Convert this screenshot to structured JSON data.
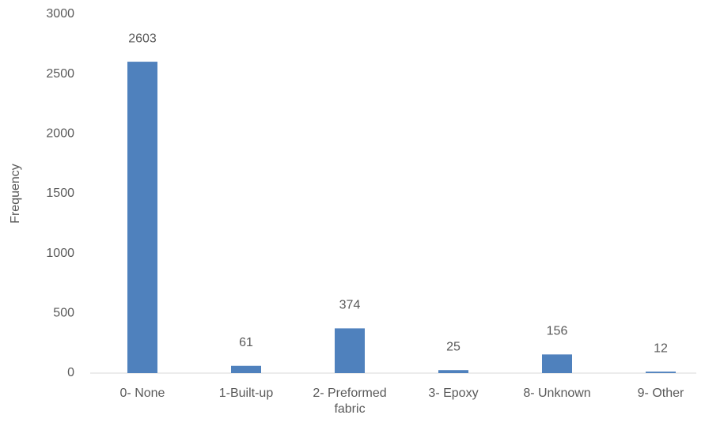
{
  "chart_data": {
    "type": "bar",
    "y_label": "Frequency",
    "categories": [
      "0- None",
      "1-Built-up",
      "2- Preformed fabric",
      "3- Epoxy",
      "8- Unknown",
      "9- Other"
    ],
    "values": [
      2603,
      61,
      374,
      25,
      156,
      12
    ],
    "color": "#4f81bd",
    "ylim": [
      0,
      3000
    ],
    "yticks": [
      0,
      500,
      1000,
      1500,
      2000,
      2500,
      3000
    ],
    "grid": false
  }
}
